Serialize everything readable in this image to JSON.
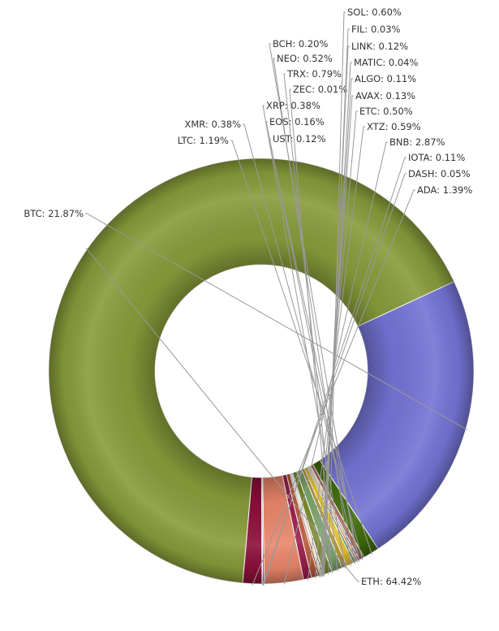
{
  "chart_data": {
    "type": "pie",
    "donut": true,
    "legend": "none",
    "slices": [
      {
        "name": "ETH",
        "value": 64.42,
        "label": "ETH: 64.42%",
        "color": "#889b3a"
      },
      {
        "name": "BTC",
        "value": 21.87,
        "label": "BTC: 21.87%",
        "color": "#7474d6"
      },
      {
        "name": "LTC",
        "value": 1.19,
        "label": "LTC: 1.19%",
        "color": "#3f6a0c"
      },
      {
        "name": "XMR",
        "value": 0.38,
        "label": "XMR: 0.38%",
        "color": "#a86a5a"
      },
      {
        "name": "UST",
        "value": 0.12,
        "label": "UST: 0.12%",
        "color": "#5c4a8a"
      },
      {
        "name": "BCH",
        "value": 0.2,
        "label": "BCH: 0.20%",
        "color": "#d6a27a"
      },
      {
        "name": "EOS",
        "value": 0.16,
        "label": "EOS: 0.16%",
        "color": "#4f8a5a"
      },
      {
        "name": "NEO",
        "value": 0.52,
        "label": "NEO: 0.52%",
        "color": "#e8c330"
      },
      {
        "name": "XRP",
        "value": 0.38,
        "label": "XRP: 0.38%",
        "color": "#b49a3a"
      },
      {
        "name": "TRX",
        "value": 0.79,
        "label": "TRX: 0.79%",
        "color": "#7aa66a"
      },
      {
        "name": "ZEC",
        "value": 0.01,
        "label": "ZEC: 0.01%",
        "color": "#c34a6a"
      },
      {
        "name": "SOL",
        "value": 0.6,
        "label": "SOL: 0.60%",
        "color": "#7a8a2a"
      },
      {
        "name": "FIL",
        "value": 0.03,
        "label": "FIL: 0.03%",
        "color": "#4a6ab8"
      },
      {
        "name": "LINK",
        "value": 0.12,
        "label": "LINK: 0.12%",
        "color": "#9a5a8a"
      },
      {
        "name": "MATIC",
        "value": 0.04,
        "label": "MATIC: 0.04%",
        "color": "#c4d24a"
      },
      {
        "name": "ALGO",
        "value": 0.11,
        "label": "ALGO: 0.11%",
        "color": "#d8d45a"
      },
      {
        "name": "AVAX",
        "value": 0.13,
        "label": "AVAX: 0.13%",
        "color": "#8a3a2a"
      },
      {
        "name": "ETC",
        "value": 0.5,
        "label": "ETC: 0.50%",
        "color": "#b85a3a"
      },
      {
        "name": "XTZ",
        "value": 0.59,
        "label": "XTZ: 0.59%",
        "color": "#9a1f4a"
      },
      {
        "name": "BNB",
        "value": 2.87,
        "label": "BNB: 2.87%",
        "color": "#e9866a"
      },
      {
        "name": "IOTA",
        "value": 0.11,
        "label": "IOTA: 0.11%",
        "color": "#6a1fa0"
      },
      {
        "name": "DASH",
        "value": 0.05,
        "label": "DASH: 0.05%",
        "color": "#e8d84a"
      },
      {
        "name": "ADA",
        "value": 1.39,
        "label": "ADA: 1.39%",
        "color": "#8a0f3a"
      }
    ]
  }
}
